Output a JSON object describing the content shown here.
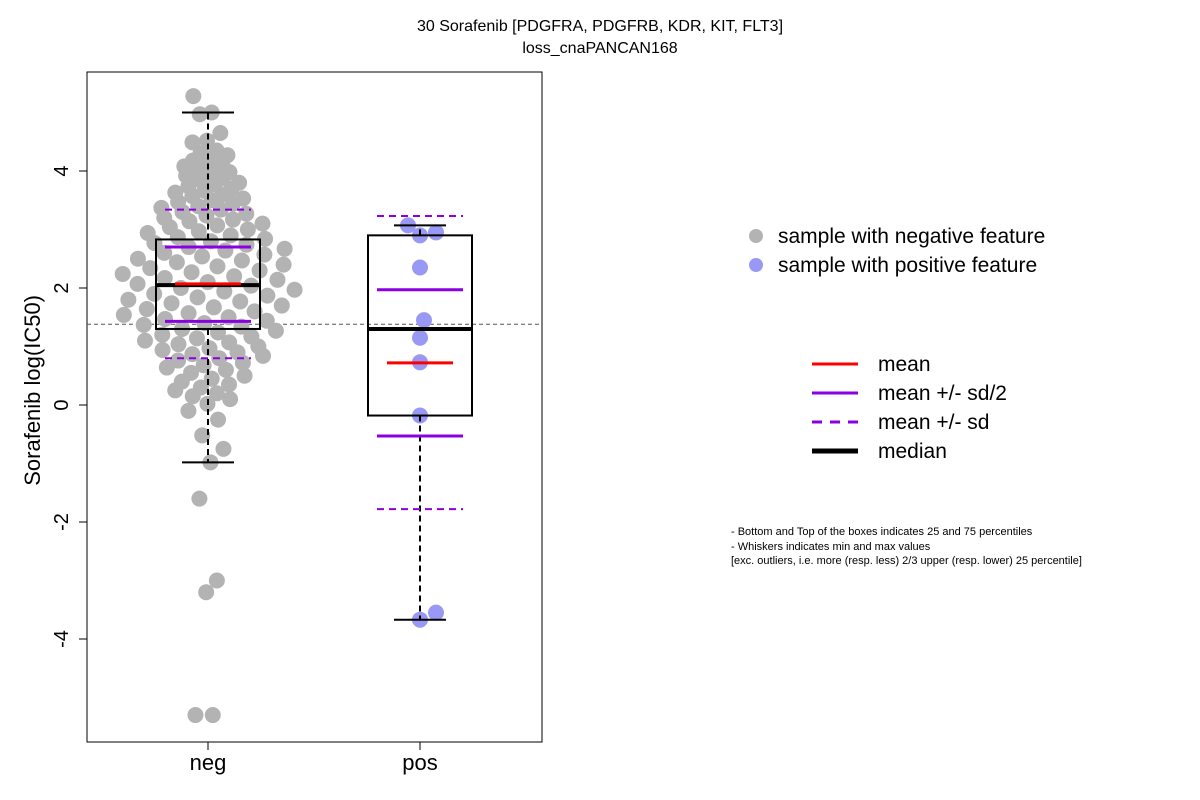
{
  "chart_data": {
    "type": "scatter",
    "subtype": "box-plot-with-jittered-points",
    "title": "30 Sorafenib [PDGFRA, PDGFRB, KDR, KIT, FLT3]",
    "subtitle": "loss_cnaPANCAN168",
    "xlabel": "",
    "ylabel": "Sorafenib log(IC50)",
    "categories": [
      "neg",
      "pos"
    ],
    "yticks": [
      "-4",
      "-2",
      "0",
      "2",
      "4"
    ],
    "ylim": [
      -5.7,
      5.7
    ],
    "reference_line": 1.38,
    "colors": {
      "neg_points": "#b3b3b3",
      "pos_points": "#9999f5",
      "mean": "#ff0000",
      "sd": "#8b00e0",
      "median": "#000000",
      "reference": "#555555"
    },
    "groups": [
      {
        "name": "neg",
        "q1": 1.3,
        "median": 2.05,
        "q3": 2.83,
        "whisker_low": -0.98,
        "whisker_high": 5.0,
        "mean": 2.07,
        "mean_minus_half_sd": 1.43,
        "mean_plus_half_sd": 2.7,
        "mean_minus_sd": 0.8,
        "mean_plus_sd": 3.34,
        "points": [
          5.28,
          5.0,
          4.97,
          4.65,
          4.52,
          4.49,
          4.35,
          4.3,
          4.27,
          4.22,
          4.18,
          4.15,
          4.12,
          4.08,
          4.05,
          4.0,
          3.98,
          3.95,
          3.92,
          3.88,
          3.85,
          3.8,
          3.77,
          3.74,
          3.7,
          3.66,
          3.63,
          3.6,
          3.57,
          3.53,
          3.5,
          3.47,
          3.44,
          3.4,
          3.37,
          3.34,
          3.3,
          3.27,
          3.24,
          3.2,
          3.17,
          3.14,
          3.1,
          3.07,
          3.04,
          3.0,
          2.97,
          2.94,
          2.9,
          2.87,
          2.84,
          2.8,
          2.77,
          2.74,
          2.7,
          2.67,
          2.64,
          2.6,
          2.57,
          2.54,
          2.5,
          2.47,
          2.44,
          2.4,
          2.37,
          2.34,
          2.3,
          2.27,
          2.24,
          2.2,
          2.17,
          2.14,
          2.1,
          2.07,
          2.04,
          2.0,
          1.97,
          1.94,
          1.9,
          1.87,
          1.84,
          1.8,
          1.77,
          1.74,
          1.7,
          1.67,
          1.64,
          1.6,
          1.57,
          1.54,
          1.5,
          1.47,
          1.44,
          1.4,
          1.37,
          1.34,
          1.3,
          1.27,
          1.24,
          1.2,
          1.17,
          1.14,
          1.1,
          1.07,
          1.04,
          1.0,
          0.97,
          0.94,
          0.9,
          0.87,
          0.84,
          0.8,
          0.76,
          0.72,
          0.68,
          0.64,
          0.6,
          0.55,
          0.5,
          0.45,
          0.4,
          0.35,
          0.3,
          0.25,
          0.2,
          0.15,
          0.1,
          0.02,
          -0.1,
          -0.25,
          -0.52,
          -0.75,
          -0.98,
          -1.6,
          -3.0,
          -3.2,
          -5.3,
          -5.3
        ]
      },
      {
        "name": "pos",
        "q1": -0.18,
        "median": 1.3,
        "q3": 2.9,
        "whisker_low": -3.67,
        "whisker_high": 3.07,
        "mean": 0.72,
        "mean_minus_half_sd": -0.53,
        "mean_plus_half_sd": 1.97,
        "mean_minus_sd": -1.78,
        "mean_plus_sd": 3.23,
        "points": [
          3.07,
          2.95,
          2.9,
          2.35,
          1.45,
          1.15,
          0.73,
          -0.18,
          -3.55,
          -3.67
        ]
      }
    ],
    "legend_points": [
      {
        "label": "sample with negative feature",
        "color": "#b3b3b3"
      },
      {
        "label": "sample with positive feature",
        "color": "#9999f5"
      }
    ],
    "legend_lines": [
      {
        "label": "mean",
        "color": "#ff0000",
        "style": "solid"
      },
      {
        "label": "mean +/- sd/2",
        "color": "#8b00e0",
        "style": "solid"
      },
      {
        "label": "mean +/- sd",
        "color": "#8b00e0",
        "style": "dashed"
      },
      {
        "label": "median",
        "color": "#000000",
        "style": "thick"
      }
    ],
    "notes": [
      "- Bottom and Top of the boxes indicates 25 and 75 percentiles",
      "- Whiskers indicates min and max values",
      "[exc. outliers, i.e. more (resp. less) 2/3 upper (resp. lower) 25 percentile]"
    ]
  }
}
